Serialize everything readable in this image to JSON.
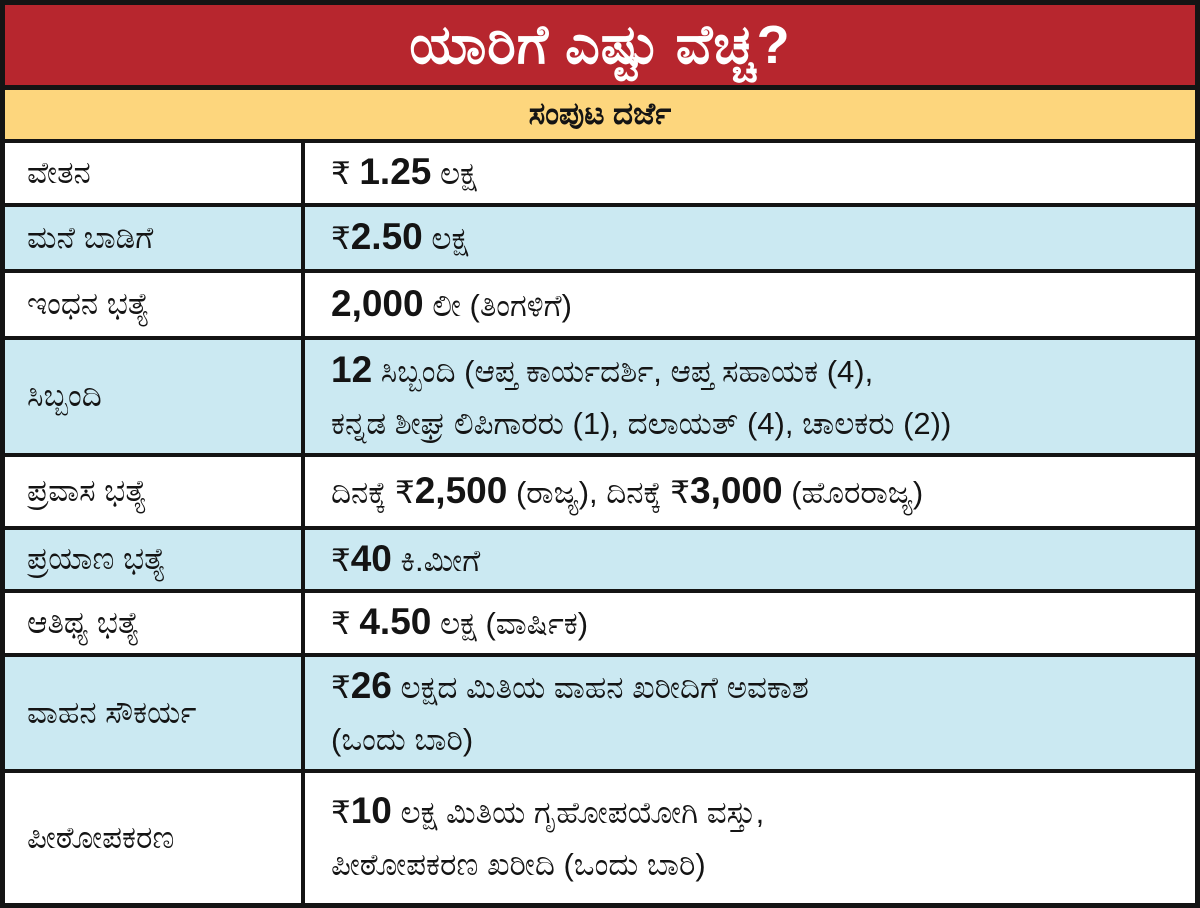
{
  "colors": {
    "header_bg": "#b7262e",
    "header_text": "#ffffff",
    "subtitle_bg": "#fdd67d",
    "row_bg": "#ffffff",
    "row_alt_bg": "#cbe9f2",
    "border": "#141414",
    "text": "#141414"
  },
  "chart_data": {
    "type": "table",
    "title": "ಯಾರಿಗೆ ಎಷ್ಟು ವೆಚ್ಚ?",
    "header": "ಸಂಪುಟ ದರ್ಜೆ",
    "currency_symbol": "₹",
    "rows": [
      {
        "label": "ವೇತನ",
        "value": "₹ 1.25 ಲಕ್ಷ",
        "segments": [
          {
            "t": "₹ ",
            "b": false
          },
          {
            "t": "1.25",
            "b": true
          },
          {
            "t": " ಲಕ್ಷ",
            "b": false
          }
        ]
      },
      {
        "label": "ಮನೆ ಬಾಡಿಗೆ",
        "value": "₹2.50 ಲಕ್ಷ",
        "segments": [
          {
            "t": "₹",
            "b": false
          },
          {
            "t": "2.50",
            "b": true
          },
          {
            "t": " ಲಕ್ಷ",
            "b": false
          }
        ]
      },
      {
        "label": "ಇಂಧನ ಭತ್ಯೆ",
        "value": "2,000 ಲೀ (ತಿಂಗಳಿಗೆ)",
        "segments": [
          {
            "t": "2,000",
            "b": true
          },
          {
            "t": " ಲೀ (ತಿಂಗಳಿಗೆ)",
            "b": false
          }
        ]
      },
      {
        "label": "ಸಿಬ್ಬಂದಿ",
        "value": "12 ಸಿಬ್ಬಂದಿ (ಆಪ್ತ ಕಾರ್ಯದರ್ಶಿ, ಆಪ್ತ ಸಹಾಯಕ (4),\nಕನ್ನಡ ಶೀಘ್ರ ಲಿಪಿಗಾರರು (1), ದಲಾಯತ್ (4), ಚಾಲಕರು (2))",
        "segments": [
          {
            "t": "12",
            "b": true
          },
          {
            "t": " ಸಿಬ್ಬಂದಿ (ಆಪ್ತ ಕಾರ್ಯದರ್ಶಿ, ಆಪ್ತ ಸಹಾಯಕ (4),\nಕನ್ನಡ ಶೀಘ್ರ ಲಿಪಿಗಾರರು (1), ದಲಾಯತ್ (4), ಚಾಲಕರು (2))",
            "b": false
          }
        ]
      },
      {
        "label": "ಪ್ರವಾಸ ಭತ್ಯೆ",
        "value": "ದಿನಕ್ಕೆ ₹2,500 (ರಾಜ್ಯ), ದಿನಕ್ಕೆ ₹3,000 (ಹೊರರಾಜ್ಯ)",
        "segments": [
          {
            "t": "ದಿನಕ್ಕೆ ₹",
            "b": false
          },
          {
            "t": "2,500",
            "b": true
          },
          {
            "t": " (ರಾಜ್ಯ), ದಿನಕ್ಕೆ ₹",
            "b": false
          },
          {
            "t": "3,000",
            "b": true
          },
          {
            "t": " (ಹೊರರಾಜ್ಯ)",
            "b": false
          }
        ]
      },
      {
        "label": "ಪ್ರಯಾಣ ಭತ್ಯೆ",
        "value": "₹40 ಕಿ.ಮೀಗೆ",
        "segments": [
          {
            "t": "₹",
            "b": false
          },
          {
            "t": "40",
            "b": true
          },
          {
            "t": " ಕಿ.ಮೀಗೆ",
            "b": false
          }
        ]
      },
      {
        "label": "ಆತಿಥ್ಯ ಭತ್ಯೆ",
        "value": "₹ 4.50 ಲಕ್ಷ (ವಾರ್ಷಿಕ)",
        "segments": [
          {
            "t": "₹ ",
            "b": false
          },
          {
            "t": "4.50",
            "b": true
          },
          {
            "t": " ಲಕ್ಷ (ವಾರ್ಷಿಕ)",
            "b": false
          }
        ]
      },
      {
        "label": "ವಾಹನ ಸೌಕರ್ಯ",
        "value": "₹26 ಲಕ್ಷದ ಮಿತಿಯ ವಾಹನ ಖರೀದಿಗೆ ಅವಕಾಶ\n(ಒಂದು ಬಾರಿ)",
        "segments": [
          {
            "t": "₹",
            "b": false
          },
          {
            "t": "26",
            "b": true
          },
          {
            "t": " ಲಕ್ಷದ ಮಿತಿಯ ವಾಹನ ಖರೀದಿಗೆ ಅವಕಾಶ\n(ಒಂದು ಬಾರಿ)",
            "b": false
          }
        ]
      },
      {
        "label": "ಪೀಠೋಪಕರಣ",
        "value": "₹10 ಲಕ್ಷ ಮಿತಿಯ ಗೃಹೋಪಯೋಗಿ ವಸ್ತು,\nಪೀಠೋಪಕರಣ ಖರೀದಿ (ಒಂದು ಬಾರಿ)",
        "segments": [
          {
            "t": "₹",
            "b": false
          },
          {
            "t": "10",
            "b": true
          },
          {
            "t": " ಲಕ್ಷ ಮಿತಿಯ ಗೃಹೋಪಯೋಗಿ ವಸ್ತು,\nಪೀಠೋಪಕರಣ ಖರೀದಿ (ಒಂದು ಬಾರಿ)",
            "b": false
          }
        ]
      }
    ]
  }
}
